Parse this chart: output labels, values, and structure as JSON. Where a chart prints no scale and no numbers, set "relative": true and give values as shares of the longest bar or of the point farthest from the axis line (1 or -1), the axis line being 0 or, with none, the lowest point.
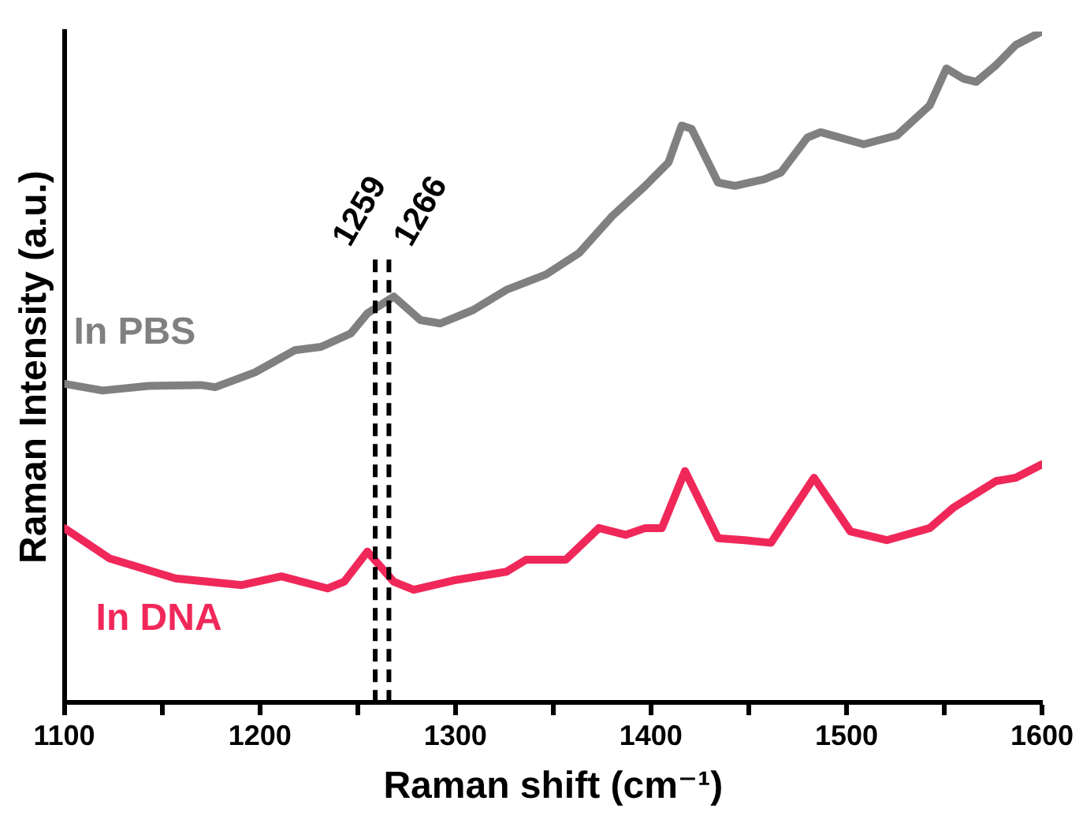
{
  "chart_data": {
    "type": "line",
    "relative": true,
    "xlabel": "Raman shift (cm⁻¹)",
    "ylabel": "Raman Intensity (a.u.)",
    "xlim": [
      1100,
      1600
    ],
    "xticks": [
      1100,
      {
        "value": 1150,
        "label": null
      },
      1200,
      {
        "value": 1250,
        "label": null
      },
      1300,
      {
        "value": 1350,
        "label": null
      },
      1400,
      {
        "value": 1450,
        "label": null
      },
      1500,
      {
        "value": 1550,
        "label": null
      },
      1600
    ],
    "grid": false,
    "legend": false,
    "marker": "none",
    "line_style": "solid",
    "ref_lines": [
      {
        "axis": "x",
        "value": 1259,
        "label": "1259",
        "color": "#000000",
        "line_style": "dashed"
      },
      {
        "axis": "x",
        "value": 1266,
        "label": "1266",
        "color": "#000000",
        "line_style": "dashed"
      }
    ],
    "series": [
      {
        "name": "In PBS",
        "color": "#808080",
        "x": [
          1100,
          1119.6,
          1143.3,
          1170.4,
          1177.2,
          1197.5,
          1217.8,
          1231.3,
          1246.5,
          1255,
          1268.5,
          1282.1,
          1292.2,
          1309.1,
          1326.1,
          1346.4,
          1363.3,
          1380.2,
          1397.1,
          1409,
          1415.7,
          1420.8,
          1434.3,
          1442.8,
          1458,
          1466.5,
          1480,
          1486.8,
          1508.8,
          1525.7,
          1542.6,
          1551.1,
          1559.6,
          1566.3,
          1576.5,
          1586.6,
          1600
        ],
        "values": [
          0.475,
          0.465,
          0.472,
          0.473,
          0.47,
          0.492,
          0.525,
          0.53,
          0.55,
          0.58,
          0.605,
          0.57,
          0.565,
          0.585,
          0.615,
          0.638,
          0.67,
          0.725,
          0.77,
          0.805,
          0.86,
          0.855,
          0.775,
          0.77,
          0.78,
          0.79,
          0.842,
          0.85,
          0.832,
          0.845,
          0.89,
          0.945,
          0.93,
          0.925,
          0.95,
          0.98,
          1
        ]
      },
      {
        "name": "In DNA",
        "color": "#f0285a",
        "x": [
          1100,
          1123,
          1156.9,
          1190.7,
          1211,
          1234.7,
          1243.1,
          1255,
          1268.5,
          1278.7,
          1299,
          1326.1,
          1336.2,
          1356.5,
          1373.4,
          1387,
          1397.1,
          1405.6,
          1417.4,
          1434.3,
          1447.9,
          1461.4,
          1483.4,
          1502,
          1520.6,
          1542.6,
          1554.5,
          1576.5,
          1586.6,
          1600
        ],
        "values": [
          0.26,
          0.215,
          0.185,
          0.175,
          0.188,
          0.17,
          0.18,
          0.225,
          0.18,
          0.168,
          0.182,
          0.195,
          0.213,
          0.213,
          0.26,
          0.25,
          0.26,
          0.26,
          0.345,
          0.245,
          0.242,
          0.238,
          0.335,
          0.255,
          0.242,
          0.26,
          0.29,
          0.33,
          0.335,
          0.355
        ]
      }
    ]
  }
}
